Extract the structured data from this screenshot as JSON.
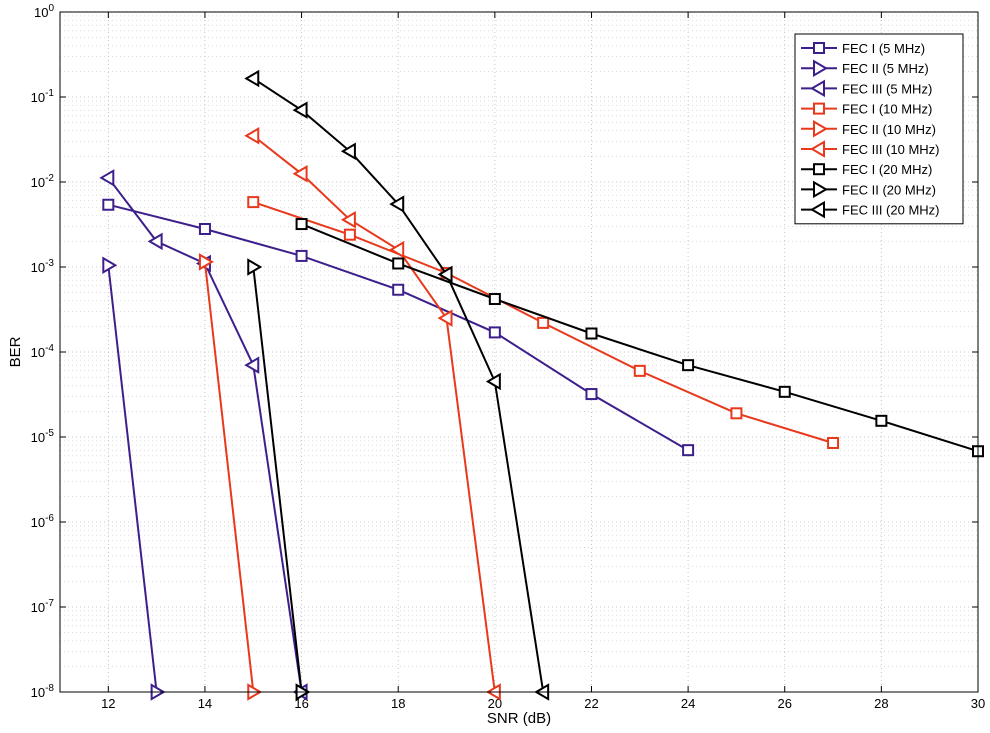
{
  "chart_data": {
    "type": "line",
    "title": "",
    "xlabel": "SNR (dB)",
    "ylabel": "BER",
    "xlim": [
      11,
      30
    ],
    "ylim": [
      1e-08,
      1
    ],
    "yscale": "log",
    "grid": true,
    "legend_position": "top-right",
    "x_ticks": [
      12,
      14,
      16,
      18,
      20,
      22,
      24,
      26,
      28,
      30
    ],
    "y_tick_exponents": [
      0,
      -1,
      -2,
      -3,
      -4,
      -5,
      -6,
      -7,
      -8
    ],
    "series": [
      {
        "name": "FEC I (5 MHz)",
        "color": "#3d1f8c",
        "marker": "square",
        "x": [
          12,
          14,
          16,
          18,
          20,
          22,
          24
        ],
        "y": [
          0.0054,
          0.0028,
          0.00135,
          0.00054,
          0.00017,
          3.2e-05,
          7e-06
        ]
      },
      {
        "name": "FEC II (5 MHz)",
        "color": "#3d1f8c",
        "marker": "triangle-right",
        "x": [
          12,
          13
        ],
        "y": [
          0.00105,
          1e-08
        ]
      },
      {
        "name": "FEC III (5 MHz)",
        "color": "#3d1f8c",
        "marker": "triangle-left",
        "x": [
          12,
          13,
          14,
          15,
          16
        ],
        "y": [
          0.0112,
          0.002,
          0.0011,
          7e-05,
          1e-08
        ]
      },
      {
        "name": "FEC I (10 MHz)",
        "color": "#e8391d",
        "marker": "square",
        "x": [
          15,
          17,
          19,
          21,
          23,
          25,
          27
        ],
        "y": [
          0.0058,
          0.0024,
          0.00085,
          0.00022,
          6e-05,
          1.9e-05,
          8.5e-06
        ]
      },
      {
        "name": "FEC II (10 MHz)",
        "color": "#e8391d",
        "marker": "triangle-right",
        "x": [
          14,
          15
        ],
        "y": [
          0.00115,
          1e-08
        ]
      },
      {
        "name": "FEC III (10 MHz)",
        "color": "#e8391d",
        "marker": "triangle-left",
        "x": [
          15,
          16,
          17,
          18,
          19,
          20
        ],
        "y": [
          0.035,
          0.0125,
          0.0036,
          0.0016,
          0.00025,
          1e-08
        ]
      },
      {
        "name": "FEC I (20 MHz)",
        "color": "#000000",
        "marker": "square",
        "x": [
          16,
          18,
          20,
          22,
          24,
          26,
          28,
          30
        ],
        "y": [
          0.0032,
          0.0011,
          0.00042,
          0.000165,
          7e-05,
          3.4e-05,
          1.55e-05,
          6.8e-06
        ]
      },
      {
        "name": "FEC II (20 MHz)",
        "color": "#000000",
        "marker": "triangle-right",
        "x": [
          15,
          16
        ],
        "y": [
          0.001,
          1e-08
        ]
      },
      {
        "name": "FEC III (20 MHz)",
        "color": "#000000",
        "marker": "triangle-left",
        "x": [
          15,
          16,
          17,
          18,
          19,
          20,
          21
        ],
        "y": [
          0.165,
          0.07,
          0.023,
          0.0055,
          0.00082,
          4.5e-05,
          1e-08
        ]
      }
    ]
  }
}
